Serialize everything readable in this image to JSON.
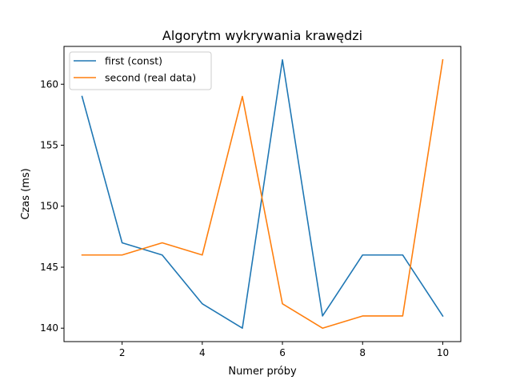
{
  "chart_data": {
    "type": "line",
    "title": "Algorytm wykrywania krawędzi",
    "xlabel": "Numer próby",
    "ylabel": "Czas (ms)",
    "x": [
      1,
      2,
      3,
      4,
      5,
      6,
      7,
      8,
      9,
      10
    ],
    "xlim": [
      0.55,
      10.45
    ],
    "ylim": [
      138.9,
      163.1
    ],
    "xticks": [
      2,
      4,
      6,
      8,
      10
    ],
    "yticks": [
      140,
      145,
      150,
      155,
      160
    ],
    "grid": false,
    "legend_position": "top-left",
    "series": [
      {
        "name": "first (const)",
        "color": "#1f77b4",
        "values": [
          159,
          147,
          146,
          142,
          140,
          162,
          141,
          146,
          146,
          141
        ]
      },
      {
        "name": "second (real data)",
        "color": "#ff7f0e",
        "values": [
          146,
          146,
          147,
          146,
          159,
          142,
          140,
          141,
          141,
          162
        ]
      }
    ]
  }
}
